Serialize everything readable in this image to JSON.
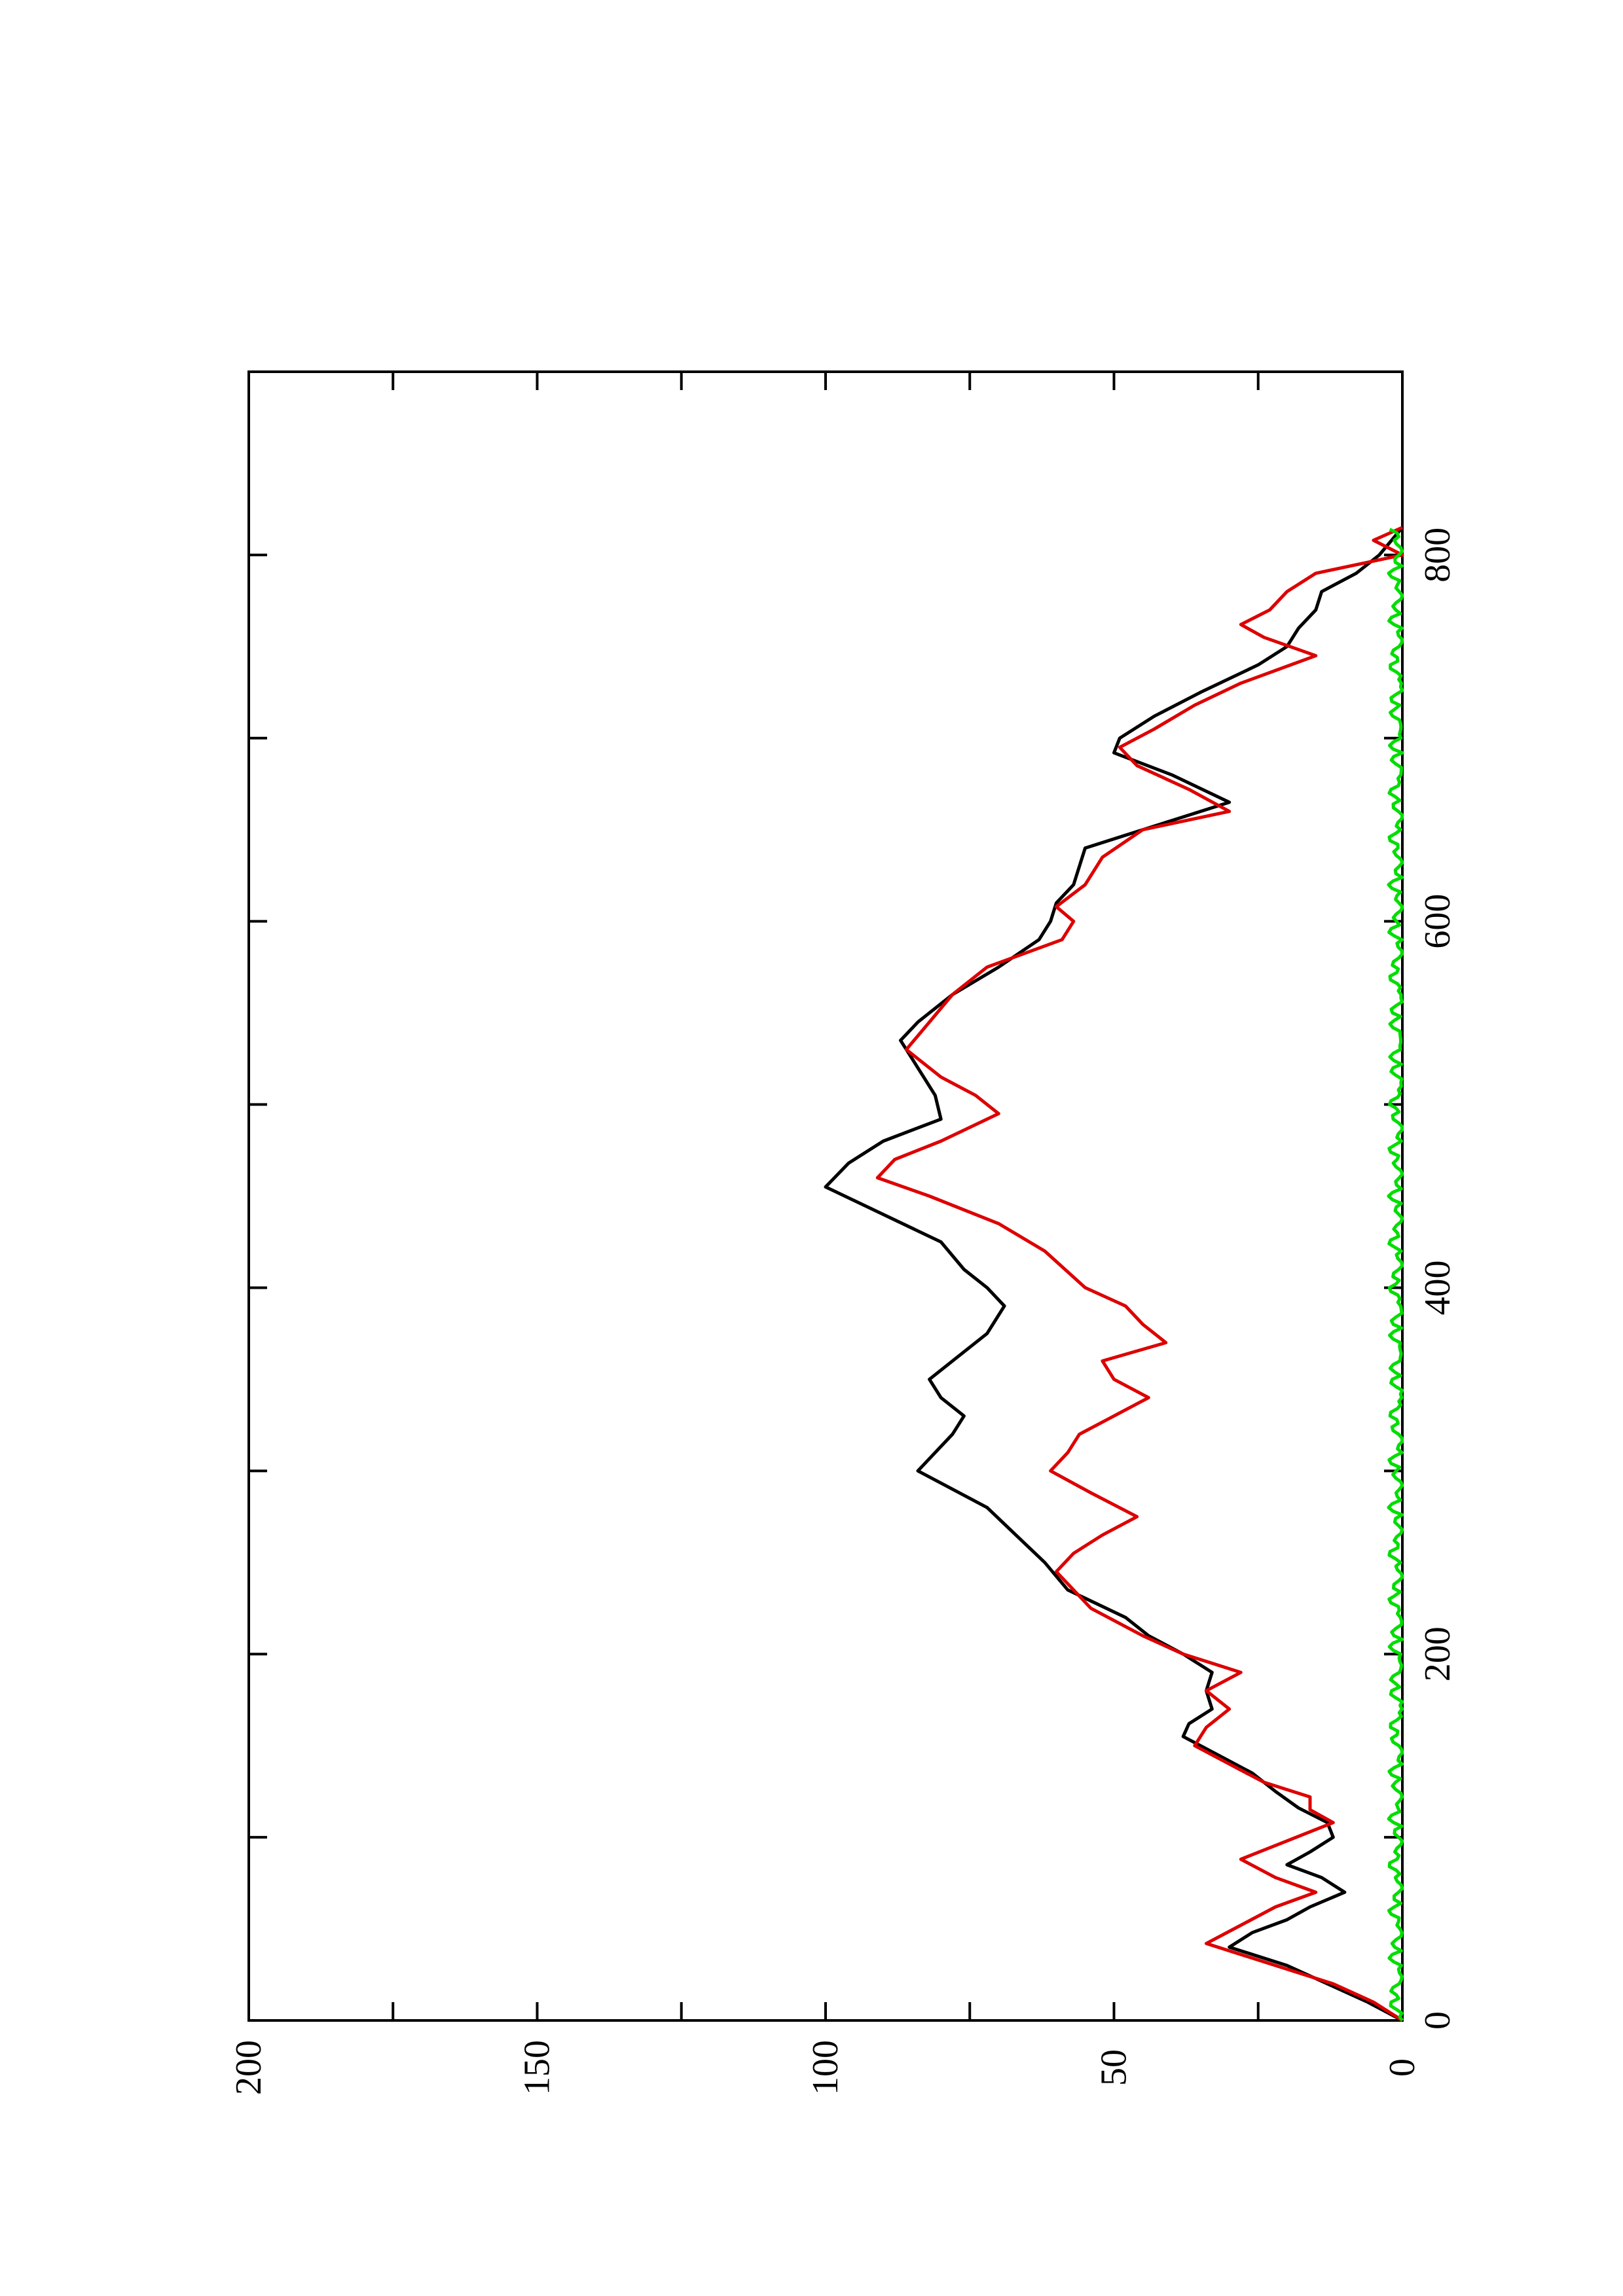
{
  "chart_data": {
    "type": "line",
    "orientation": "rotated-90-ccw",
    "title": "",
    "xlabel": "",
    "ylabel": "",
    "xlim": [
      0,
      900
    ],
    "ylim": [
      0,
      200
    ],
    "grid": false,
    "x_ticks": [
      "0",
      "200",
      "400",
      "600",
      "800"
    ],
    "y_ticks": [
      "0",
      "50",
      "100",
      "150",
      "200"
    ],
    "series": [
      {
        "color": "#000000",
        "points": [
          [
            0,
            0
          ],
          [
            10,
            6
          ],
          [
            20,
            13
          ],
          [
            30,
            20
          ],
          [
            40,
            30
          ],
          [
            48,
            26
          ],
          [
            55,
            20
          ],
          [
            62,
            16
          ],
          [
            70,
            10
          ],
          [
            78,
            14
          ],
          [
            85,
            20
          ],
          [
            92,
            16
          ],
          [
            100,
            12
          ],
          [
            108,
            13
          ],
          [
            116,
            18
          ],
          [
            125,
            22
          ],
          [
            135,
            26
          ],
          [
            145,
            32
          ],
          [
            155,
            38
          ],
          [
            162,
            37
          ],
          [
            170,
            33
          ],
          [
            180,
            34
          ],
          [
            190,
            33
          ],
          [
            200,
            38
          ],
          [
            210,
            44
          ],
          [
            220,
            48
          ],
          [
            235,
            58
          ],
          [
            250,
            62
          ],
          [
            265,
            67
          ],
          [
            280,
            72
          ],
          [
            300,
            84
          ],
          [
            310,
            81
          ],
          [
            320,
            78
          ],
          [
            330,
            76
          ],
          [
            340,
            80
          ],
          [
            350,
            82
          ],
          [
            360,
            78
          ],
          [
            375,
            72
          ],
          [
            390,
            69
          ],
          [
            400,
            72
          ],
          [
            410,
            76
          ],
          [
            425,
            80
          ],
          [
            440,
            90
          ],
          [
            455,
            100
          ],
          [
            468,
            96
          ],
          [
            480,
            90
          ],
          [
            492,
            80
          ],
          [
            505,
            81
          ],
          [
            515,
            83
          ],
          [
            525,
            85
          ],
          [
            535,
            87
          ],
          [
            545,
            84
          ],
          [
            560,
            78
          ],
          [
            575,
            70
          ],
          [
            590,
            63
          ],
          [
            600,
            61
          ],
          [
            610,
            60
          ],
          [
            620,
            57
          ],
          [
            640,
            55
          ],
          [
            655,
            40
          ],
          [
            665,
            30
          ],
          [
            680,
            40
          ],
          [
            692,
            50
          ],
          [
            700,
            49
          ],
          [
            712,
            43
          ],
          [
            725,
            35
          ],
          [
            740,
            25
          ],
          [
            750,
            20
          ],
          [
            760,
            18
          ],
          [
            770,
            15
          ],
          [
            780,
            14
          ],
          [
            790,
            8
          ],
          [
            800,
            4
          ],
          [
            815,
            0
          ]
        ]
      },
      {
        "color": "#dd0000",
        "points": [
          [
            0,
            0
          ],
          [
            10,
            5
          ],
          [
            20,
            12
          ],
          [
            30,
            22
          ],
          [
            42,
            34
          ],
          [
            52,
            28
          ],
          [
            62,
            22
          ],
          [
            70,
            15
          ],
          [
            78,
            22
          ],
          [
            88,
            28
          ],
          [
            98,
            20
          ],
          [
            108,
            12
          ],
          [
            115,
            16
          ],
          [
            122,
            16
          ],
          [
            130,
            24
          ],
          [
            140,
            30
          ],
          [
            150,
            36
          ],
          [
            160,
            34
          ],
          [
            170,
            30
          ],
          [
            180,
            34
          ],
          [
            190,
            28
          ],
          [
            200,
            38
          ],
          [
            210,
            45
          ],
          [
            225,
            54
          ],
          [
            245,
            60
          ],
          [
            255,
            57
          ],
          [
            265,
            52
          ],
          [
            275,
            46
          ],
          [
            288,
            54
          ],
          [
            300,
            61
          ],
          [
            310,
            58
          ],
          [
            320,
            56
          ],
          [
            330,
            50
          ],
          [
            340,
            44
          ],
          [
            350,
            50
          ],
          [
            360,
            52
          ],
          [
            370,
            41
          ],
          [
            380,
            45
          ],
          [
            390,
            48
          ],
          [
            400,
            55
          ],
          [
            420,
            62
          ],
          [
            435,
            70
          ],
          [
            450,
            82
          ],
          [
            460,
            91
          ],
          [
            470,
            88
          ],
          [
            480,
            80
          ],
          [
            495,
            70
          ],
          [
            505,
            74
          ],
          [
            515,
            80
          ],
          [
            530,
            86
          ],
          [
            545,
            82
          ],
          [
            560,
            78
          ],
          [
            575,
            72
          ],
          [
            590,
            59
          ],
          [
            600,
            57
          ],
          [
            608,
            60
          ],
          [
            620,
            55
          ],
          [
            635,
            52
          ],
          [
            650,
            45
          ],
          [
            660,
            30
          ],
          [
            672,
            37
          ],
          [
            685,
            46
          ],
          [
            695,
            49
          ],
          [
            705,
            43
          ],
          [
            718,
            36
          ],
          [
            730,
            28
          ],
          [
            745,
            15
          ],
          [
            755,
            24
          ],
          [
            762,
            28
          ],
          [
            770,
            23
          ],
          [
            780,
            20
          ],
          [
            790,
            15
          ],
          [
            800,
            0
          ],
          [
            808,
            5
          ],
          [
            815,
            0
          ]
        ]
      },
      {
        "color": "#00dd00",
        "points": [
          [
            0,
            1
          ],
          [
            815,
            1
          ]
        ],
        "noise_amplitude": 1.2
      }
    ]
  }
}
